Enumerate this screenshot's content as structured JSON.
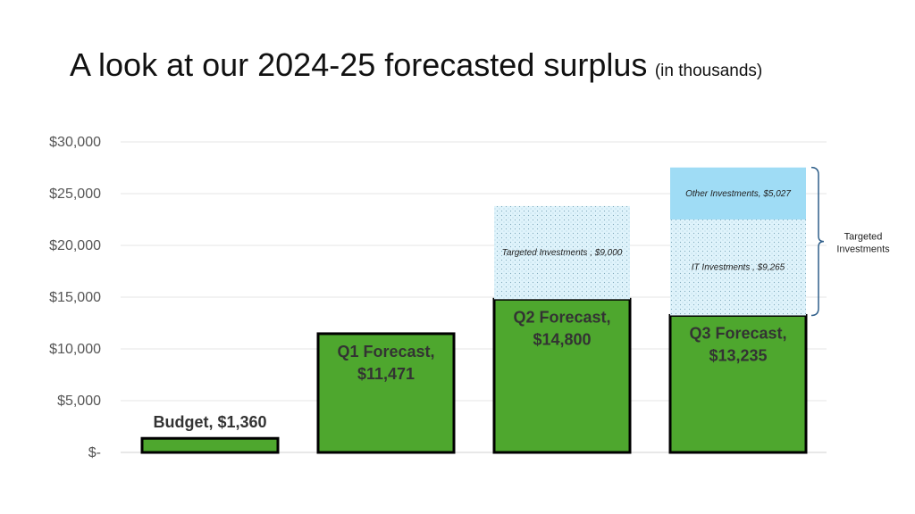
{
  "slide": {
    "title": "A look at our 2024-25 forecasted surplus",
    "subtitle": "(in thousands)"
  },
  "colors": {
    "green": "#4ea72e",
    "dotted_light_blue": "#dff3fb",
    "other_investments_blue": "#9fdcf5",
    "bracket": "#2f5f8a"
  },
  "chart_data": {
    "type": "bar",
    "stacked": true,
    "categories": [
      "Budget",
      "Q1 Forecast",
      "Q2 Forecast",
      "Q3 Forecast"
    ],
    "ylim": [
      0,
      30000
    ],
    "y_ticks": [
      0,
      5000,
      10000,
      15000,
      20000,
      25000,
      30000
    ],
    "y_tick_labels": [
      "$-",
      "$5,000",
      "$10,000",
      "$15,000",
      "$20,000",
      "$25,000",
      "$30,000"
    ],
    "grid": true,
    "series": [
      {
        "values": [
          1360,
          11471,
          14800,
          13235
        ],
        "color": "#4ea72e",
        "pattern": "solid"
      },
      {
        "values": [
          0,
          0,
          9000,
          9265
        ],
        "color": "#dff3fb",
        "pattern": "dotted"
      },
      {
        "values": [
          0,
          0,
          0,
          5027
        ],
        "color": "#9fdcf5",
        "pattern": "solid"
      }
    ],
    "data_labels": [
      {
        "category": "Budget",
        "lines": [
          "Budget,  $1,360"
        ],
        "style": "bar",
        "place": "above"
      },
      {
        "category": "Q1 Forecast",
        "lines": [
          "Q1 Forecast,",
          "$11,471"
        ],
        "style": "bar",
        "place": "inside"
      },
      {
        "category": "Q2 Forecast",
        "lines": [
          "Q2 Forecast,",
          "$14,800"
        ],
        "style": "bar",
        "place": "inside"
      },
      {
        "category": "Q3 Forecast",
        "lines": [
          "Q3 Forecast,",
          "$13,235"
        ],
        "style": "bar",
        "place": "inside"
      },
      {
        "category": "Q2 Forecast",
        "segment": 1,
        "lines": [
          "Targeted Investments ,  $9,000"
        ],
        "style": "seg"
      },
      {
        "category": "Q3 Forecast",
        "segment": 1,
        "lines": [
          "IT Investments ,  $9,265"
        ],
        "style": "seg"
      },
      {
        "category": "Q3 Forecast",
        "segment": 2,
        "lines": [
          "Other Investments,  $5,027"
        ],
        "style": "seg"
      }
    ],
    "bracket_annotation": {
      "category": "Q3 Forecast",
      "from_segment": 1,
      "to_segment": 2,
      "lines": [
        "Targeted",
        "Investments"
      ]
    }
  }
}
